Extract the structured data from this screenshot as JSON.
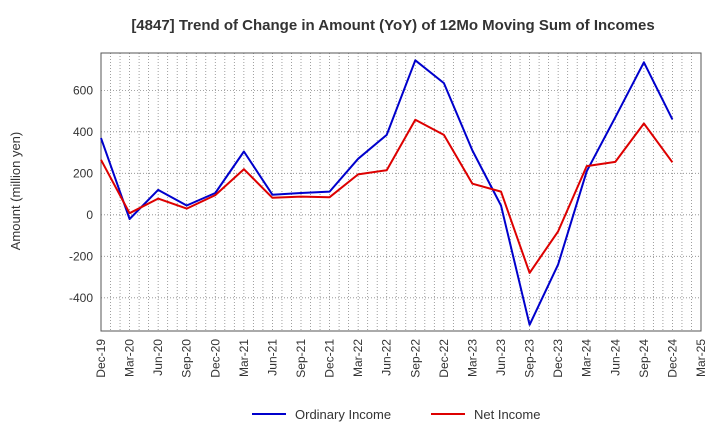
{
  "chart_data": {
    "type": "line",
    "title": "[4847]  Trend of Change in Amount (YoY) of 12Mo Moving Sum of Incomes",
    "xlabel": "",
    "ylabel": "Amount (million yen)",
    "x": [
      "Dec-19",
      "Mar-20",
      "Jun-20",
      "Sep-20",
      "Dec-20",
      "Mar-21",
      "Jun-21",
      "Sep-21",
      "Dec-21",
      "Mar-22",
      "Jun-22",
      "Sep-22",
      "Dec-22",
      "Mar-23",
      "Jun-23",
      "Sep-23",
      "Dec-23",
      "Mar-24",
      "Jun-24",
      "Sep-24",
      "Dec-24",
      "Mar-25"
    ],
    "ylim": [
      -560,
      780
    ],
    "yticks": [
      -400,
      -200,
      0,
      200,
      400,
      600
    ],
    "grid": true,
    "legend_position": "bottom",
    "series": [
      {
        "name": "Ordinary Income",
        "color": "#0000cc",
        "values": [
          370,
          -20,
          120,
          45,
          105,
          305,
          97,
          105,
          112,
          270,
          385,
          745,
          635,
          310,
          45,
          -530,
          -240,
          210,
          470,
          735,
          460,
          null
        ]
      },
      {
        "name": "Net Income",
        "color": "#dd0000",
        "values": [
          265,
          8,
          78,
          30,
          95,
          220,
          82,
          88,
          85,
          195,
          215,
          458,
          385,
          150,
          112,
          -280,
          -80,
          235,
          255,
          440,
          253,
          null
        ]
      }
    ]
  }
}
